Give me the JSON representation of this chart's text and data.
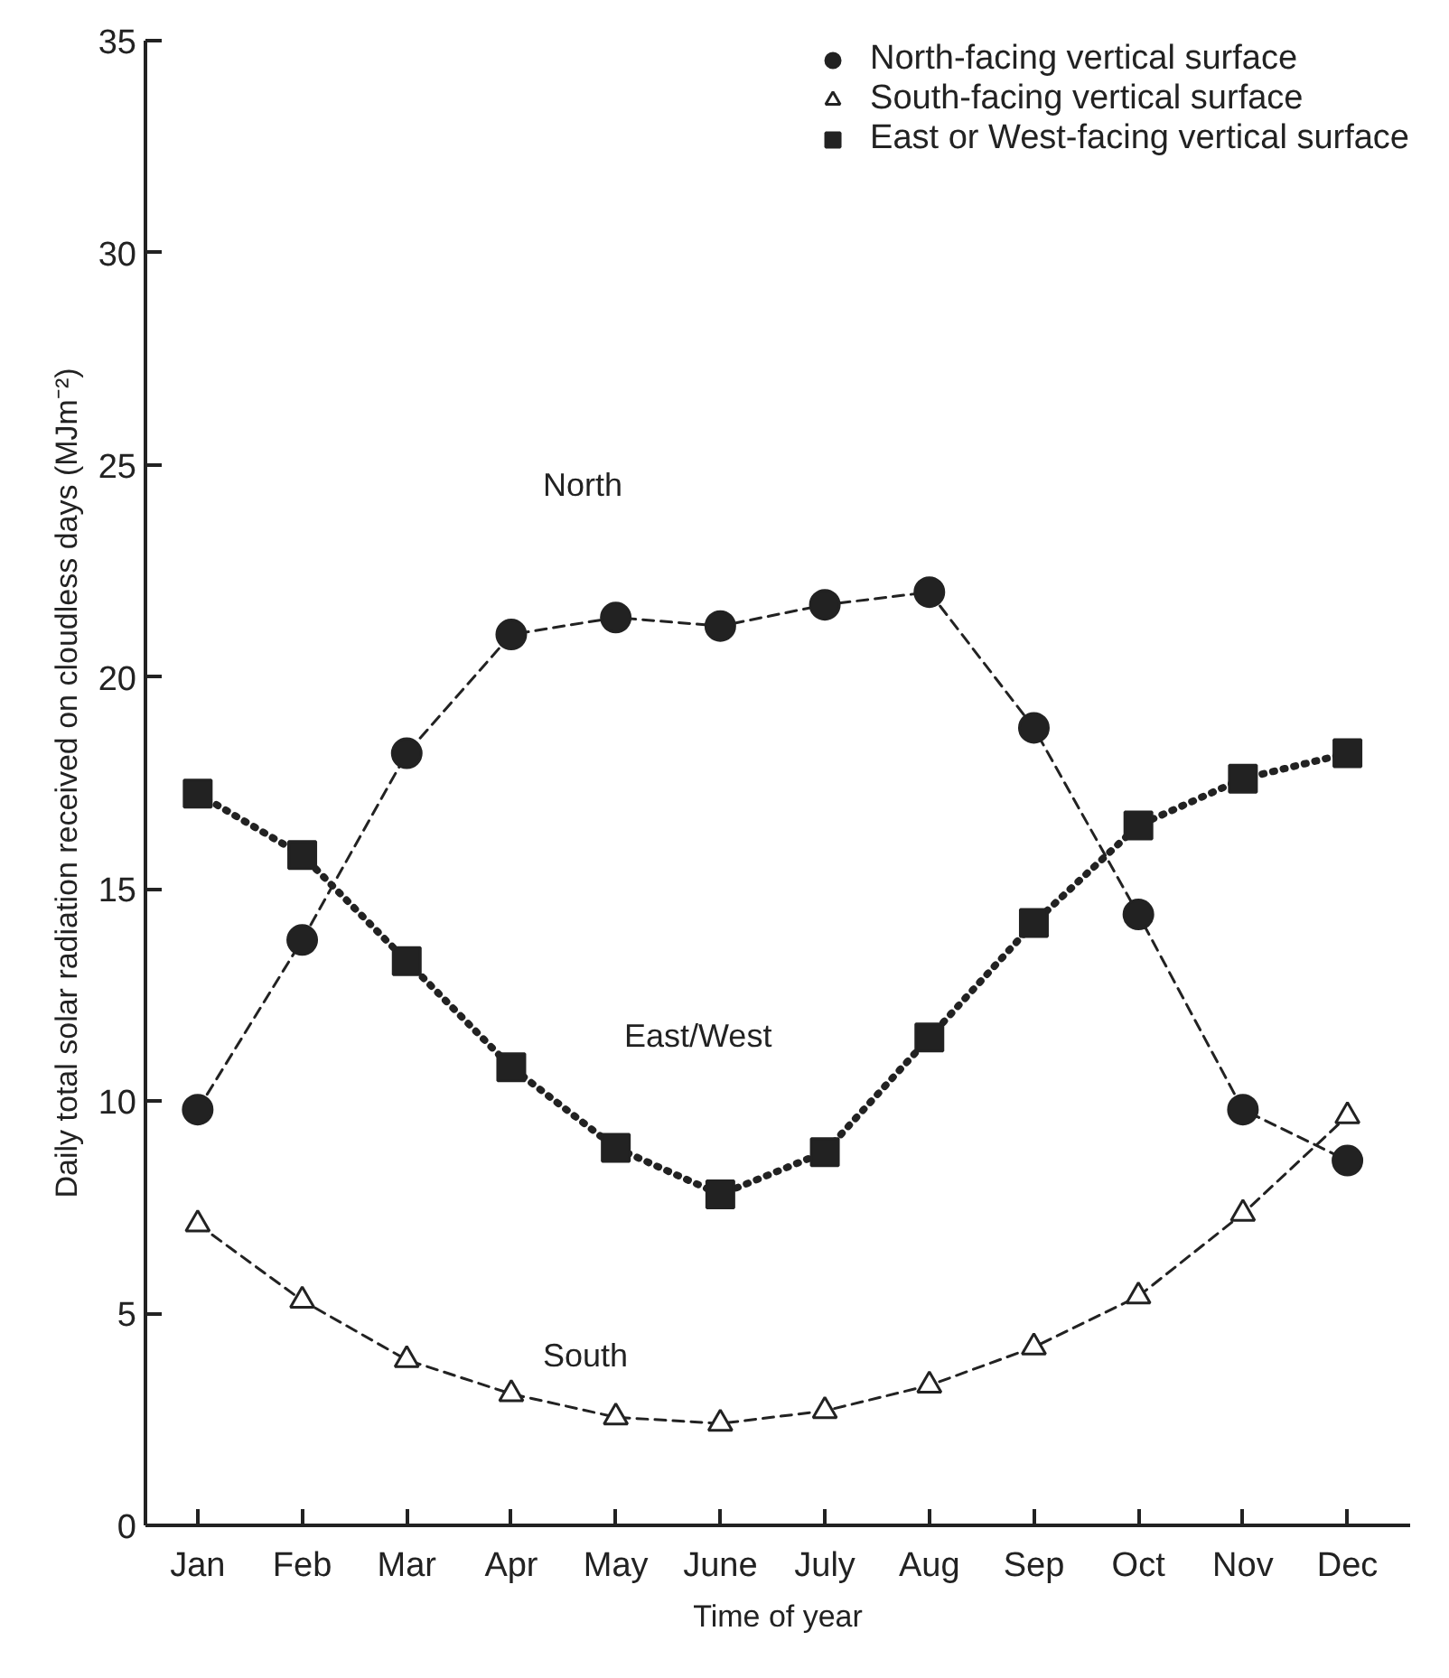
{
  "chart_data": {
    "type": "line",
    "xlabel": "Time of year",
    "ylabel": "Daily total solar radiation received on cloudless days (MJm⁻²)",
    "categories": [
      "Jan",
      "Feb",
      "Mar",
      "Apr",
      "May",
      "June",
      "July",
      "Aug",
      "Sep",
      "Oct",
      "Nov",
      "Dec"
    ],
    "ylim": [
      0,
      35
    ],
    "yticks": [
      0,
      5,
      10,
      15,
      20,
      25,
      30,
      35
    ],
    "grid": false,
    "legend": "top right",
    "series": [
      {
        "name": "North-facing vertical surface",
        "color": "#222222",
        "marker": "circle",
        "line_style": "dashed",
        "values": [
          9.8,
          13.8,
          18.2,
          21.0,
          21.4,
          21.2,
          21.7,
          22.0,
          18.8,
          14.4,
          9.8,
          8.6
        ]
      },
      {
        "name": "South-facing vertical surface",
        "color": "#222222",
        "marker": "triangle",
        "line_style": "dashed",
        "values": [
          7.1,
          5.3,
          3.9,
          3.1,
          2.55,
          2.4,
          2.7,
          3.3,
          4.2,
          5.4,
          7.35,
          9.65
        ]
      },
      {
        "name": "East or West-facing vertical surface",
        "color": "#222222",
        "marker": "square",
        "line_style": "dotted",
        "values": [
          17.25,
          15.8,
          13.3,
          10.8,
          8.9,
          7.8,
          8.8,
          11.5,
          14.2,
          16.5,
          17.6,
          18.2
        ]
      }
    ],
    "annotations": [
      "North",
      "East/West",
      "South"
    ]
  }
}
